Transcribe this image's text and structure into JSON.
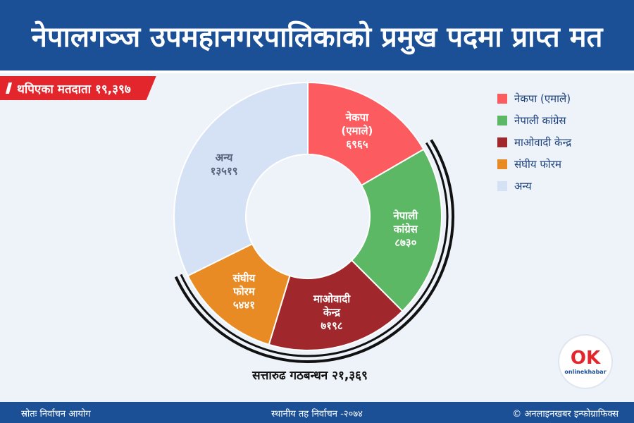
{
  "header": {
    "title": "नेपालगञ्ज उपमहानगरपालिकाको प्रमुख पदमा प्राप्त मत"
  },
  "voters_banner": {
    "text": "थपिएका मतदाता १९,३९७"
  },
  "chart_data": {
    "type": "pie",
    "categories": [
      "नेकपा (एमाले)",
      "नेपाली कांग्रेस",
      "माओवादी केन्द्र",
      "संघीय फोरम",
      "अन्य"
    ],
    "values": [
      6965,
      8730,
      7198,
      5441,
      13519
    ],
    "slice_labels": [
      [
        "नेकपा",
        "(एमाले)",
        "६९६५"
      ],
      [
        "नेपाली",
        "कांग्रेस",
        "८७३०"
      ],
      [
        "माओवादी",
        "केन्द्र",
        "७१९८"
      ],
      [
        "संघीय",
        "फोरम",
        "५४४१"
      ],
      [
        "अन्य",
        "१३५१९"
      ]
    ],
    "colors": [
      "#fc5b60",
      "#5db865",
      "#a0282c",
      "#e98b24",
      "#d5e2f5"
    ],
    "label_colors": [
      "#ffffff",
      "#ffffff",
      "#ffffff",
      "#ffffff",
      "#55627a"
    ],
    "legend_placement": "right",
    "coalition_text": "सत्तारुढ गठबन्धन २१,३६९"
  },
  "legend": [
    {
      "label": "नेकपा (एमाले)",
      "color": "#fc5b60"
    },
    {
      "label": "नेपाली कांग्रेस",
      "color": "#5db865"
    },
    {
      "label": "माओवादी केन्द्र",
      "color": "#a0282c"
    },
    {
      "label": "संघीय फोरम",
      "color": "#e98b24"
    },
    {
      "label": "अन्य",
      "color": "#d5e2f5"
    }
  ],
  "logo": {
    "mark": "OK",
    "text": "onlinekhabar"
  },
  "footer": {
    "source": "स्रोतः निर्वाचन आयोग",
    "election": "स्थानीय तह निर्वाचन -२०७४",
    "credit": "© अनलाइनखबर इन्फोग्राफिक्स"
  }
}
